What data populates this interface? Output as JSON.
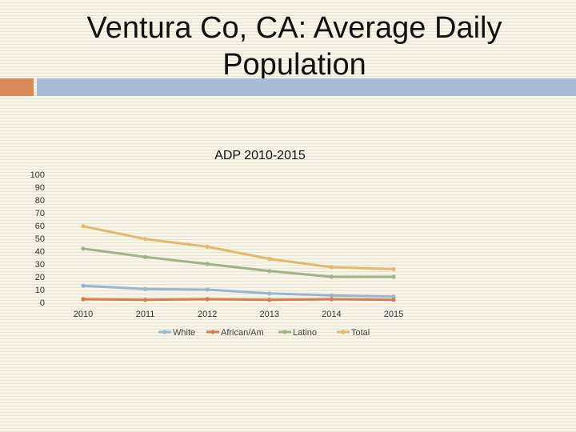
{
  "slide": {
    "title_line1": "Ventura Co, CA: Average Daily",
    "title_line2": "Population"
  },
  "chart_data": {
    "type": "line",
    "title": "ADP 2010-2015",
    "x": [
      "2010",
      "2011",
      "2012",
      "2013",
      "2014",
      "2015"
    ],
    "ylim": [
      0,
      100
    ],
    "yticks": [
      "100",
      "90",
      "80",
      "70",
      "60",
      "50",
      "40",
      "30",
      "20",
      "10",
      "0"
    ],
    "xlabel": "",
    "ylabel": "",
    "grid": false,
    "legend_position": "bottom",
    "series": [
      {
        "name": "White",
        "color": "#9ab4d4",
        "values": [
          13,
          10.5,
          10,
          7,
          5.5,
          4.5
        ]
      },
      {
        "name": "African/Am",
        "color": "#d77b4e",
        "values": [
          2.5,
          2,
          2.5,
          2,
          2.5,
          2
        ]
      },
      {
        "name": "Latino",
        "color": "#9fb486",
        "values": [
          42,
          35.5,
          30,
          24.5,
          20,
          20
        ]
      },
      {
        "name": "Total",
        "color": "#e5b86b",
        "values": [
          59.5,
          49.5,
          43.5,
          34,
          27.5,
          26
        ]
      }
    ]
  }
}
